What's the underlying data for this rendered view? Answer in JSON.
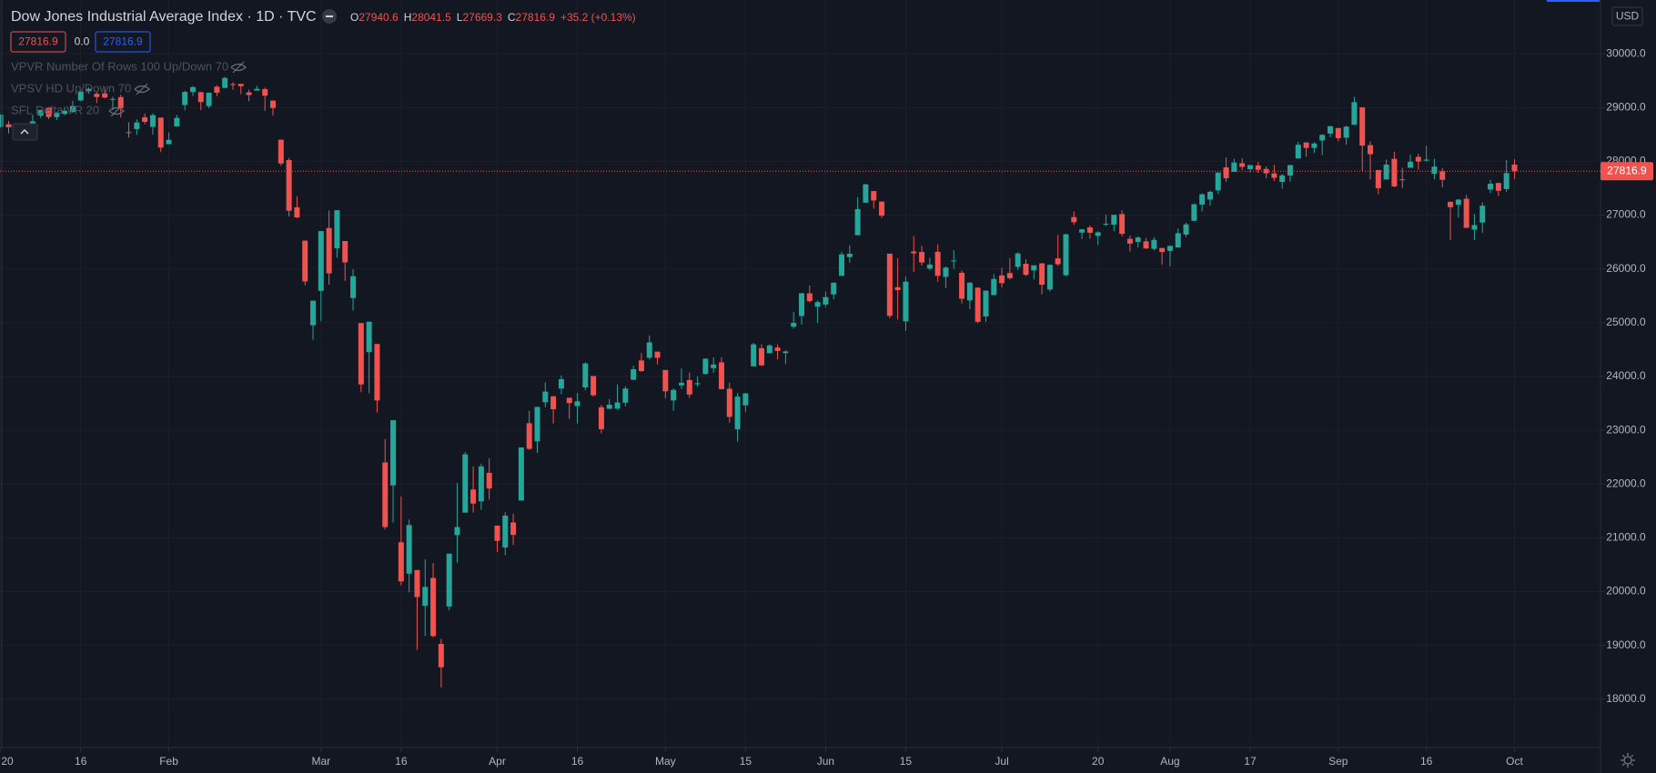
{
  "header": {
    "title": "Dow Jones Industrial Average Index · 1D · TVC",
    "ohlc": [
      {
        "label": "O",
        "value": "27940.6"
      },
      {
        "label": "H",
        "value": "28041.5"
      },
      {
        "label": "L",
        "value": "27669.3"
      },
      {
        "label": "C",
        "value": "27816.9"
      }
    ],
    "change": "+35.2 (+0.13%)",
    "bid": "27816.9",
    "spread": "0.0",
    "ask": "27816.9",
    "indicators": [
      "VPVR Number Of Rows 100 Up/Down 70",
      "VPSV HD Up/Down 70",
      "SFL Delta VR 20"
    ],
    "currency": "USD"
  },
  "chart_data": {
    "type": "candlestick",
    "colors": {
      "up": "#26a69a",
      "down": "#ef5350"
    },
    "ylim": [
      17100,
      31000
    ],
    "yticks": [
      {
        "value": 18000,
        "label": "18000.0"
      },
      {
        "value": 19000,
        "label": "19000.0"
      },
      {
        "value": 20000,
        "label": "20000.0"
      },
      {
        "value": 21000,
        "label": "21000.0"
      },
      {
        "value": 22000,
        "label": "22000.0"
      },
      {
        "value": 23000,
        "label": "23000.0"
      },
      {
        "value": 24000,
        "label": "24000.0"
      },
      {
        "value": 25000,
        "label": "25000.0"
      },
      {
        "value": 26000,
        "label": "26000.0"
      },
      {
        "value": 27000,
        "label": "27000.0"
      },
      {
        "value": 28000,
        "label": "28000.0"
      },
      {
        "value": 29000,
        "label": "29000.0"
      },
      {
        "value": 30000,
        "label": "30000.0"
      }
    ],
    "xticks": [
      {
        "value": 0,
        "label": "20"
      },
      {
        "value": 10,
        "label": "16"
      },
      {
        "value": 21,
        "label": "Feb"
      },
      {
        "value": 40,
        "label": "Mar"
      },
      {
        "value": 50,
        "label": "16"
      },
      {
        "value": 62,
        "label": "Apr"
      },
      {
        "value": 72,
        "label": "16"
      },
      {
        "value": 83,
        "label": "May"
      },
      {
        "value": 93,
        "label": "15"
      },
      {
        "value": 103,
        "label": "Jun"
      },
      {
        "value": 113,
        "label": "15"
      },
      {
        "value": 125,
        "label": "Jul"
      },
      {
        "value": 137,
        "label": "20"
      },
      {
        "value": 146,
        "label": "Aug"
      },
      {
        "value": 156,
        "label": "17"
      },
      {
        "value": 167,
        "label": "Sep"
      },
      {
        "value": 178,
        "label": "16"
      },
      {
        "value": 189,
        "label": "Oct"
      }
    ],
    "grid": true,
    "price_line": {
      "value": 27816.9,
      "label": "27816.9"
    },
    "ohlc": [
      [
        28639,
        28873,
        28627,
        28868
      ],
      [
        28690,
        28750,
        28520,
        28634
      ],
      [
        28465,
        28708,
        28460,
        28703
      ],
      [
        28640,
        28685,
        28565,
        28583
      ],
      [
        28556,
        28866,
        28541,
        28745
      ],
      [
        28852,
        28958,
        28806,
        28956
      ],
      [
        29000,
        29010,
        28784,
        28824
      ],
      [
        28823,
        28908,
        28767,
        28908
      ],
      [
        28880,
        29010,
        28860,
        28940
      ],
      [
        28920,
        29128,
        28900,
        29030
      ],
      [
        29132,
        29300,
        29120,
        29298
      ],
      [
        29313,
        29374,
        29254,
        29348
      ],
      [
        29256,
        29299,
        29082,
        29196
      ],
      [
        29264,
        29373,
        29171,
        29186
      ],
      [
        29143,
        29202,
        28953,
        29160
      ],
      [
        29195,
        29240,
        28818,
        28990
      ],
      [
        28542,
        28727,
        28440,
        28535
      ],
      [
        28600,
        28780,
        28490,
        28723
      ],
      [
        28820,
        28890,
        28690,
        28734
      ],
      [
        28640,
        28893,
        28500,
        28859
      ],
      [
        28813,
        28813,
        28170,
        28256
      ],
      [
        28319,
        28539,
        28319,
        28400
      ],
      [
        28650,
        28863,
        28650,
        28808
      ],
      [
        29048,
        29311,
        28946,
        29291
      ],
      [
        29290,
        29396,
        29217,
        29380
      ],
      [
        29287,
        29287,
        28953,
        29103
      ],
      [
        29028,
        29277,
        28986,
        29276
      ],
      [
        29387,
        29416,
        29212,
        29277
      ],
      [
        29365,
        29569,
        29365,
        29551
      ],
      [
        29436,
        29471,
        29331,
        29424
      ],
      [
        29441,
        29441,
        29249,
        29398
      ],
      [
        29282,
        29331,
        29117,
        29233
      ],
      [
        29315,
        29406,
        29315,
        29348
      ],
      [
        29344,
        29370,
        28938,
        29220
      ],
      [
        29130,
        29130,
        28849,
        28992
      ],
      [
        28403,
        28403,
        27921,
        27961
      ],
      [
        28023,
        28064,
        26976,
        27081
      ],
      [
        27145,
        27351,
        26943,
        26958
      ],
      [
        26526,
        26526,
        25692,
        25767
      ],
      [
        24952,
        25410,
        24681,
        25409
      ],
      [
        25591,
        26703,
        25027,
        26703
      ],
      [
        26762,
        27084,
        25706,
        25917
      ],
      [
        26383,
        27091,
        26207,
        27091
      ],
      [
        26519,
        26519,
        25776,
        26122
      ],
      [
        25458,
        25994,
        25226,
        25865
      ],
      [
        24992,
        24992,
        23707,
        23851
      ],
      [
        24453,
        25018,
        23690,
        25018
      ],
      [
        24604,
        24604,
        23328,
        23553
      ],
      [
        22400,
        22837,
        21154,
        21200
      ],
      [
        21974,
        23186,
        21286,
        23186
      ],
      [
        20917,
        21770,
        20117,
        20189
      ],
      [
        20334,
        21338,
        19988,
        21237
      ],
      [
        20400,
        20400,
        18917,
        19899
      ],
      [
        19734,
        20600,
        19177,
        20087
      ],
      [
        20254,
        20531,
        19148,
        19174
      ],
      [
        19028,
        19121,
        18214,
        18592
      ],
      [
        19723,
        20705,
        19651,
        20705
      ],
      [
        21050,
        22020,
        20538,
        21200
      ],
      [
        21468,
        22595,
        21469,
        22552
      ],
      [
        21898,
        22327,
        21469,
        21637
      ],
      [
        21678,
        22378,
        21522,
        22327
      ],
      [
        22208,
        22480,
        21710,
        21917
      ],
      [
        21227,
        21227,
        20735,
        20943
      ],
      [
        20819,
        21477,
        20677,
        21413
      ],
      [
        21285,
        21447,
        20863,
        21053
      ],
      [
        21693,
        22680,
        21693,
        22680
      ],
      [
        23131,
        23361,
        22633,
        22654
      ],
      [
        22794,
        23434,
        22580,
        23434
      ],
      [
        23520,
        23888,
        23427,
        23719
      ],
      [
        23632,
        23632,
        23124,
        23390
      ],
      [
        23775,
        24021,
        23672,
        23950
      ],
      [
        23604,
        23604,
        23210,
        23505
      ],
      [
        23449,
        23691,
        23123,
        23538
      ],
      [
        23796,
        24264,
        23740,
        24242
      ],
      [
        24009,
        24009,
        23623,
        23650
      ],
      [
        23427,
        23470,
        22941,
        23019
      ],
      [
        23398,
        23581,
        23396,
        23475
      ],
      [
        23402,
        23852,
        23380,
        23516
      ],
      [
        23512,
        23817,
        23444,
        23775
      ],
      [
        23939,
        24203,
        23928,
        24134
      ],
      [
        24298,
        24432,
        24083,
        24101
      ],
      [
        24348,
        24764,
        24314,
        24634
      ],
      [
        24461,
        24461,
        24225,
        24346
      ],
      [
        24120,
        24120,
        23593,
        23724
      ],
      [
        23554,
        23781,
        23361,
        23750
      ],
      [
        23834,
        24148,
        23769,
        23883
      ],
      [
        23934,
        24074,
        23602,
        23664
      ],
      [
        23855,
        24002,
        23813,
        23875
      ],
      [
        24047,
        24331,
        24037,
        24331
      ],
      [
        24154,
        24354,
        24066,
        24222
      ],
      [
        24263,
        24353,
        23763,
        23764
      ],
      [
        23773,
        23886,
        23139,
        23248
      ],
      [
        23019,
        23694,
        22789,
        23625
      ],
      [
        23462,
        23694,
        23341,
        23685
      ],
      [
        24188,
        24625,
        24188,
        24597
      ],
      [
        24527,
        24598,
        24194,
        24206
      ],
      [
        24431,
        24603,
        24431,
        24576
      ],
      [
        24538,
        24598,
        24317,
        24474
      ],
      [
        24434,
        24486,
        24230,
        24465
      ],
      [
        24927,
        25201,
        24888,
        24995
      ],
      [
        25124,
        25548,
        24965,
        25548
      ],
      [
        25545,
        25691,
        25377,
        25401
      ],
      [
        25297,
        25415,
        24993,
        25383
      ],
      [
        25338,
        25577,
        25291,
        25475
      ],
      [
        25526,
        25751,
        25437,
        25742
      ],
      [
        25872,
        26319,
        25872,
        26270
      ],
      [
        26219,
        26438,
        26117,
        26282
      ],
      [
        26627,
        27338,
        26627,
        27111
      ],
      [
        27232,
        27580,
        27232,
        27572
      ],
      [
        27447,
        27447,
        27122,
        27272
      ],
      [
        27252,
        27252,
        26946,
        26990
      ],
      [
        26283,
        26283,
        25082,
        25128
      ],
      [
        25659,
        26197,
        25059,
        25606
      ],
      [
        25026,
        25860,
        24843,
        25763
      ],
      [
        26324,
        26611,
        25942,
        26290
      ],
      [
        26314,
        26429,
        26060,
        26120
      ],
      [
        26006,
        26207,
        25975,
        26080
      ],
      [
        26318,
        26456,
        25760,
        25871
      ],
      [
        25851,
        26046,
        25645,
        26025
      ],
      [
        26146,
        26350,
        26002,
        26156
      ],
      [
        25928,
        25971,
        25358,
        25446
      ],
      [
        25414,
        25749,
        25251,
        25745
      ],
      [
        25652,
        25652,
        24988,
        25016
      ],
      [
        25116,
        25599,
        25016,
        25596
      ],
      [
        25513,
        25904,
        25507,
        25813
      ],
      [
        25879,
        26022,
        25654,
        25735
      ],
      [
        25922,
        26204,
        25800,
        25827
      ],
      [
        26037,
        26308,
        25980,
        26287
      ],
      [
        26096,
        26178,
        25865,
        25890
      ],
      [
        25972,
        26067,
        25806,
        26067
      ],
      [
        26104,
        26104,
        25524,
        25706
      ],
      [
        25617,
        26085,
        25583,
        26075
      ],
      [
        26196,
        26632,
        26057,
        26086
      ],
      [
        25883,
        26655,
        25861,
        26643
      ],
      [
        26963,
        27068,
        26819,
        26870
      ],
      [
        26675,
        26741,
        26552,
        26735
      ],
      [
        26772,
        26806,
        26561,
        26672
      ],
      [
        26612,
        26699,
        26444,
        26680
      ],
      [
        26838,
        27007,
        26796,
        26840
      ],
      [
        26823,
        27005,
        26700,
        27005
      ],
      [
        27020,
        27089,
        26606,
        26652
      ],
      [
        26560,
        26622,
        26324,
        26470
      ],
      [
        26501,
        26609,
        26402,
        26584
      ],
      [
        26512,
        26574,
        26373,
        26379
      ],
      [
        26373,
        26589,
        26349,
        26540
      ],
      [
        26389,
        26389,
        26081,
        26314
      ],
      [
        26334,
        26436,
        26051,
        26428
      ],
      [
        26398,
        26753,
        26398,
        26664
      ],
      [
        26638,
        26858,
        26587,
        26828
      ],
      [
        26894,
        27223,
        26894,
        27201
      ],
      [
        27196,
        27403,
        27068,
        27387
      ],
      [
        27289,
        27457,
        27175,
        27433
      ],
      [
        27460,
        27791,
        27391,
        27791
      ],
      [
        27888,
        28070,
        27616,
        27687
      ],
      [
        27805,
        28049,
        27805,
        27977
      ],
      [
        27965,
        28058,
        27838,
        27897
      ],
      [
        27854,
        27933,
        27793,
        27931
      ],
      [
        27924,
        27986,
        27783,
        27844
      ],
      [
        27859,
        27905,
        27684,
        27778
      ],
      [
        27775,
        27933,
        27633,
        27693
      ],
      [
        27617,
        27763,
        27491,
        27740
      ],
      [
        27736,
        27938,
        27623,
        27930
      ],
      [
        28053,
        28362,
        28053,
        28308
      ],
      [
        28351,
        28351,
        28086,
        28249
      ],
      [
        28251,
        28359,
        28154,
        28332
      ],
      [
        28387,
        28502,
        28115,
        28493
      ],
      [
        28515,
        28654,
        28449,
        28654
      ],
      [
        28620,
        28620,
        28373,
        28430
      ],
      [
        28439,
        28660,
        28310,
        28646
      ],
      [
        28679,
        29200,
        28679,
        29100
      ],
      [
        29003,
        29003,
        27820,
        28292
      ],
      [
        28301,
        28371,
        27665,
        28133
      ],
      [
        27839,
        27839,
        27387,
        27501
      ],
      [
        27663,
        28030,
        27663,
        27940
      ],
      [
        28046,
        28179,
        27518,
        27535
      ],
      [
        27667,
        27880,
        27501,
        27666
      ],
      [
        27880,
        28125,
        27880,
        27993
      ],
      [
        28083,
        28139,
        27845,
        27996
      ],
      [
        28013,
        28288,
        27995,
        28032
      ],
      [
        27769,
        28049,
        27670,
        27902
      ],
      [
        27813,
        27872,
        27516,
        27657
      ],
      [
        27248,
        27248,
        26538,
        27148
      ],
      [
        27192,
        27302,
        26952,
        27288
      ],
      [
        27305,
        27377,
        26763,
        26763
      ],
      [
        26730,
        27019,
        26537,
        26815
      ],
      [
        26862,
        27237,
        26668,
        27174
      ],
      [
        27475,
        27655,
        27409,
        27584
      ],
      [
        27598,
        27602,
        27357,
        27452
      ],
      [
        27484,
        28025,
        27436,
        27782
      ],
      [
        27940.6,
        28041.5,
        27669.3,
        27816.9
      ]
    ]
  }
}
